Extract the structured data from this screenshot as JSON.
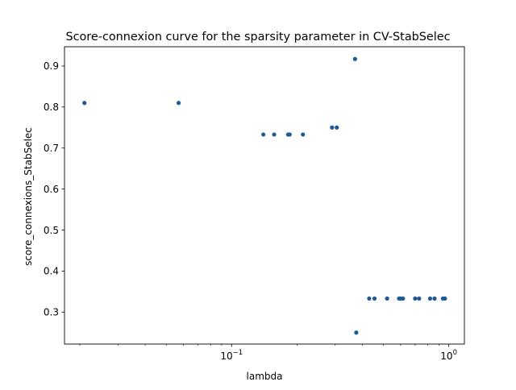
{
  "chart_data": {
    "type": "scatter",
    "title": "Score-connexion curve for the sparsity parameter in CV-StabSelec",
    "xlabel": "lambda",
    "ylabel": "score_connexions_StabSelec",
    "xscale": "log",
    "xlim": [
      0.017,
      1.18
    ],
    "ylim": [
      0.222,
      0.947
    ],
    "grid": false,
    "x_ticks": [
      {
        "value": 0.1,
        "base": "10",
        "exp": "−1"
      },
      {
        "value": 1,
        "base": "10",
        "exp": "0"
      }
    ],
    "y_ticks": [
      {
        "value": 0.3,
        "label": "0.3"
      },
      {
        "value": 0.4,
        "label": "0.4"
      },
      {
        "value": 0.5,
        "label": "0.5"
      },
      {
        "value": 0.6,
        "label": "0.6"
      },
      {
        "value": 0.7,
        "label": "0.7"
      },
      {
        "value": 0.8,
        "label": "0.8"
      },
      {
        "value": 0.9,
        "label": "0.9"
      }
    ],
    "marker_color": "#1f5a96",
    "points": [
      {
        "x": 0.021,
        "y": 0.81
      },
      {
        "x": 0.057,
        "y": 0.81
      },
      {
        "x": 0.14,
        "y": 0.733
      },
      {
        "x": 0.157,
        "y": 0.733
      },
      {
        "x": 0.182,
        "y": 0.733
      },
      {
        "x": 0.185,
        "y": 0.733
      },
      {
        "x": 0.213,
        "y": 0.733
      },
      {
        "x": 0.29,
        "y": 0.75
      },
      {
        "x": 0.305,
        "y": 0.75
      },
      {
        "x": 0.37,
        "y": 0.917
      },
      {
        "x": 0.375,
        "y": 0.25
      },
      {
        "x": 0.43,
        "y": 0.333
      },
      {
        "x": 0.455,
        "y": 0.333
      },
      {
        "x": 0.52,
        "y": 0.333
      },
      {
        "x": 0.59,
        "y": 0.333
      },
      {
        "x": 0.6,
        "y": 0.333
      },
      {
        "x": 0.615,
        "y": 0.333
      },
      {
        "x": 0.7,
        "y": 0.333
      },
      {
        "x": 0.73,
        "y": 0.333
      },
      {
        "x": 0.82,
        "y": 0.333
      },
      {
        "x": 0.86,
        "y": 0.333
      },
      {
        "x": 0.94,
        "y": 0.333
      },
      {
        "x": 0.96,
        "y": 0.333
      }
    ]
  }
}
